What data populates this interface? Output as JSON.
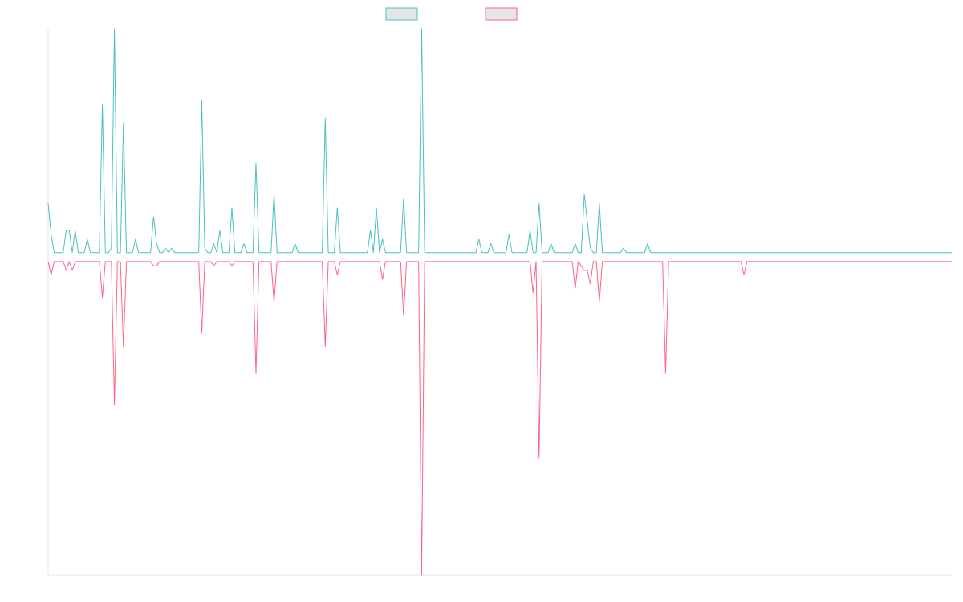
{
  "chart_data": {
    "type": "line",
    "legend_placement": "top-center",
    "grid": false,
    "x_range": [
      0,
      300
    ],
    "y_range": [
      -0.71,
      0.51
    ],
    "colors": {
      "series_a_stroke": "#4bc0c0",
      "series_b_stroke": "#ff6384",
      "legend_fill": "#e5e5e5",
      "axis": "#e5e5e5"
    },
    "series": [
      {
        "values": [
          0.12,
          0.05,
          0.01,
          0.01,
          0.01,
          0.01,
          0.06,
          0.06,
          0.01,
          0.06,
          0.01,
          0.01,
          0.01,
          0.04,
          0.01,
          0.01,
          0.01,
          0.01,
          0.34,
          0.01,
          0.01,
          0.02,
          0.51,
          0.01,
          0.01,
          0.3,
          0.01,
          0.01,
          0.01,
          0.04,
          0.01,
          0.01,
          0.01,
          0.01,
          0.01,
          0.09,
          0.03,
          0.01,
          0.01,
          0.02,
          0.01,
          0.02,
          0.01,
          0.01,
          0.01,
          0.01,
          0.01,
          0.01,
          0.01,
          0.01,
          0.01,
          0.35,
          0.02,
          0.01,
          0.01,
          0.03,
          0.01,
          0.06,
          0.01,
          0.01,
          0.01,
          0.11,
          0.01,
          0.01,
          0.01,
          0.03,
          0.01,
          0.01,
          0.01,
          0.21,
          0.01,
          0.01,
          0.01,
          0.01,
          0.01,
          0.14,
          0.01,
          0.01,
          0.01,
          0.01,
          0.01,
          0.01,
          0.03,
          0.01,
          0.01,
          0.01,
          0.01,
          0.01,
          0.01,
          0.01,
          0.01,
          0.01,
          0.31,
          0.01,
          0.01,
          0.01,
          0.11,
          0.01,
          0.01,
          0.01,
          0.01,
          0.01,
          0.01,
          0.01,
          0.01,
          0.01,
          0.01,
          0.06,
          0.01,
          0.11,
          0.01,
          0.04,
          0.01,
          0.01,
          0.01,
          0.01,
          0.01,
          0.01,
          0.13,
          0.01,
          0.01,
          0.01,
          0.01,
          0.01,
          0.51,
          0.01,
          0.01,
          0.01,
          0.01,
          0.01,
          0.01,
          0.01,
          0.01,
          0.01,
          0.01,
          0.01,
          0.01,
          0.01,
          0.01,
          0.01,
          0.01,
          0.01,
          0.01,
          0.04,
          0.01,
          0.01,
          0.01,
          0.03,
          0.01,
          0.01,
          0.01,
          0.01,
          0.01,
          0.05,
          0.01,
          0.01,
          0.01,
          0.01,
          0.01,
          0.01,
          0.06,
          0.01,
          0.01,
          0.12,
          0.01,
          0.01,
          0.01,
          0.03,
          0.01,
          0.01,
          0.01,
          0.01,
          0.01,
          0.01,
          0.01,
          0.03,
          0.01,
          0.01,
          0.14,
          0.08,
          0.02,
          0.01,
          0.01,
          0.12,
          0.01,
          0.01,
          0.01,
          0.01,
          0.01,
          0.01,
          0.01,
          0.02,
          0.01,
          0.01,
          0.01,
          0.01,
          0.01,
          0.01,
          0.01,
          0.03,
          0.01,
          0.01,
          0.01,
          0.01,
          0.01,
          0.01,
          0.01,
          0.01,
          0.01,
          0.01,
          0.01,
          0.01,
          0.01,
          0.01,
          0.01,
          0.01,
          0.01,
          0.01,
          0.01,
          0.01,
          0.01,
          0.01,
          0.01,
          0.01,
          0.01,
          0.01,
          0.01,
          0.01,
          0.01,
          0.01,
          0.01,
          0.01,
          0.01,
          0.01,
          0.01,
          0.01,
          0.01,
          0.01,
          0.01,
          0.01,
          0.01,
          0.01,
          0.01,
          0.01,
          0.01,
          0.01,
          0.01,
          0.01,
          0.01,
          0.01,
          0.01,
          0.01,
          0.01,
          0.01,
          0.01,
          0.01,
          0.01,
          0.01,
          0.01,
          0.01,
          0.01,
          0.01,
          0.01,
          0.01,
          0.01,
          0.01,
          0.01,
          0.01,
          0.01,
          0.01,
          0.01,
          0.01,
          0.01,
          0.01,
          0.01,
          0.01,
          0.01,
          0.01,
          0.01,
          0.01,
          0.01,
          0.01,
          0.01,
          0.01,
          0.01,
          0.01,
          0.01,
          0.01,
          0.01,
          0.01,
          0.01,
          0.01,
          0.01,
          0.01,
          0.01,
          0.01,
          0.01,
          0.01,
          0.01,
          0.01,
          0.01
        ]
      },
      {
        "values": [
          -0.01,
          -0.04,
          -0.01,
          -0.01,
          -0.01,
          -0.01,
          -0.03,
          -0.01,
          -0.03,
          -0.01,
          -0.01,
          -0.01,
          -0.01,
          -0.01,
          -0.01,
          -0.01,
          -0.01,
          -0.01,
          -0.09,
          -0.01,
          -0.01,
          -0.01,
          -0.33,
          -0.01,
          -0.01,
          -0.2,
          -0.01,
          -0.01,
          -0.01,
          -0.01,
          -0.01,
          -0.01,
          -0.01,
          -0.01,
          -0.01,
          -0.02,
          -0.02,
          -0.01,
          -0.01,
          -0.01,
          -0.01,
          -0.01,
          -0.01,
          -0.01,
          -0.01,
          -0.01,
          -0.01,
          -0.01,
          -0.01,
          -0.01,
          -0.01,
          -0.17,
          -0.01,
          -0.01,
          -0.01,
          -0.02,
          -0.01,
          -0.01,
          -0.01,
          -0.01,
          -0.01,
          -0.02,
          -0.01,
          -0.01,
          -0.01,
          -0.01,
          -0.01,
          -0.01,
          -0.01,
          -0.26,
          -0.01,
          -0.01,
          -0.01,
          -0.01,
          -0.01,
          -0.1,
          -0.01,
          -0.01,
          -0.01,
          -0.01,
          -0.01,
          -0.01,
          -0.01,
          -0.01,
          -0.01,
          -0.01,
          -0.01,
          -0.01,
          -0.01,
          -0.01,
          -0.01,
          -0.01,
          -0.2,
          -0.01,
          -0.01,
          -0.01,
          -0.04,
          -0.01,
          -0.01,
          -0.01,
          -0.01,
          -0.01,
          -0.01,
          -0.01,
          -0.01,
          -0.01,
          -0.01,
          -0.01,
          -0.01,
          -0.01,
          -0.01,
          -0.05,
          -0.01,
          -0.01,
          -0.01,
          -0.01,
          -0.01,
          -0.01,
          -0.13,
          -0.01,
          -0.01,
          -0.01,
          -0.01,
          -0.01,
          -0.71,
          -0.01,
          -0.01,
          -0.01,
          -0.01,
          -0.01,
          -0.01,
          -0.01,
          -0.01,
          -0.01,
          -0.01,
          -0.01,
          -0.01,
          -0.01,
          -0.01,
          -0.01,
          -0.01,
          -0.01,
          -0.01,
          -0.01,
          -0.01,
          -0.01,
          -0.01,
          -0.01,
          -0.01,
          -0.01,
          -0.01,
          -0.01,
          -0.01,
          -0.01,
          -0.01,
          -0.01,
          -0.01,
          -0.01,
          -0.01,
          -0.01,
          -0.01,
          -0.08,
          -0.01,
          -0.45,
          -0.01,
          -0.01,
          -0.01,
          -0.01,
          -0.01,
          -0.01,
          -0.01,
          -0.01,
          -0.01,
          -0.01,
          -0.01,
          -0.07,
          -0.01,
          -0.02,
          -0.03,
          -0.03,
          -0.06,
          -0.01,
          -0.01,
          -0.1,
          -0.01,
          -0.01,
          -0.01,
          -0.01,
          -0.01,
          -0.01,
          -0.01,
          -0.01,
          -0.01,
          -0.01,
          -0.01,
          -0.01,
          -0.01,
          -0.01,
          -0.01,
          -0.01,
          -0.01,
          -0.01,
          -0.01,
          -0.01,
          -0.01,
          -0.26,
          -0.01,
          -0.01,
          -0.01,
          -0.01,
          -0.01,
          -0.01,
          -0.01,
          -0.01,
          -0.01,
          -0.01,
          -0.01,
          -0.01,
          -0.01,
          -0.01,
          -0.01,
          -0.01,
          -0.01,
          -0.01,
          -0.01,
          -0.01,
          -0.01,
          -0.01,
          -0.01,
          -0.01,
          -0.01,
          -0.04,
          -0.01,
          -0.01,
          -0.01,
          -0.01,
          -0.01,
          -0.01,
          -0.01,
          -0.01,
          -0.01,
          -0.01,
          -0.01,
          -0.01,
          -0.01,
          -0.01,
          -0.01,
          -0.01,
          -0.01,
          -0.01,
          -0.01,
          -0.01,
          -0.01,
          -0.01,
          -0.01,
          -0.01,
          -0.01,
          -0.01,
          -0.01,
          -0.01,
          -0.01,
          -0.01,
          -0.01,
          -0.01,
          -0.01,
          -0.01,
          -0.01,
          -0.01,
          -0.01,
          -0.01,
          -0.01,
          -0.01,
          -0.01,
          -0.01,
          -0.01,
          -0.01,
          -0.01,
          -0.01,
          -0.01,
          -0.01,
          -0.01,
          -0.01,
          -0.01,
          -0.01,
          -0.01,
          -0.01,
          -0.01,
          -0.01,
          -0.01,
          -0.01,
          -0.01,
          -0.01,
          -0.01,
          -0.01,
          -0.01,
          -0.01,
          -0.01,
          -0.01,
          -0.01,
          -0.01,
          -0.01
        ]
      }
    ]
  }
}
